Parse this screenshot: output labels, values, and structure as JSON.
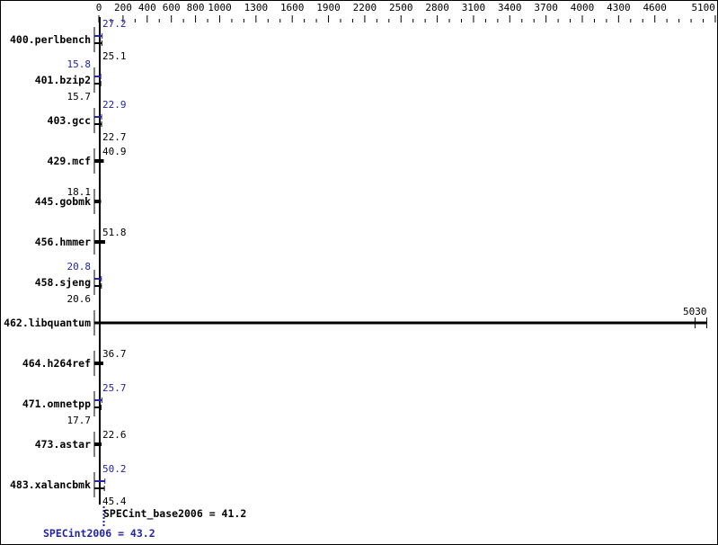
{
  "chart_data": {
    "type": "bar",
    "orientation": "horizontal",
    "xlim": [
      0,
      5100
    ],
    "x_ticks": [
      0,
      200,
      400,
      600,
      800,
      1000,
      1300,
      1600,
      1900,
      2200,
      2500,
      2800,
      3100,
      3400,
      3700,
      4000,
      4300,
      4600,
      5100
    ],
    "categories": [
      "400.perlbench",
      "401.bzip2",
      "403.gcc",
      "429.mcf",
      "445.gobmk",
      "456.hmmer",
      "458.sjeng",
      "462.libquantum",
      "464.h264ref",
      "471.omnetpp",
      "473.astar",
      "483.xalancbmk"
    ],
    "series": [
      {
        "name": "SPECint_base2006",
        "color": "#000000",
        "values": [
          25.1,
          15.7,
          22.7,
          40.9,
          18.1,
          51.8,
          20.6,
          5030,
          36.7,
          17.7,
          22.6,
          45.4
        ]
      },
      {
        "name": "SPECint2006",
        "color": "#2222aa",
        "values": [
          27.2,
          15.8,
          22.9,
          null,
          null,
          null,
          20.8,
          null,
          null,
          25.7,
          null,
          50.2
        ]
      }
    ],
    "summary": {
      "base_label": "SPECint_base2006 = 41.2",
      "peak_label": "SPECint2006 = 43.2",
      "base_value": 41.2,
      "peak_value": 43.2
    },
    "grid": false
  }
}
